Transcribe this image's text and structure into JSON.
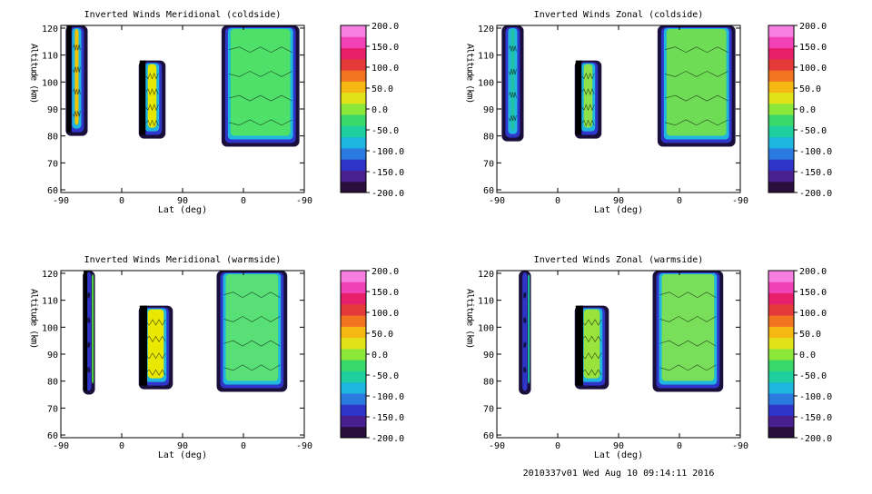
{
  "footer": "2010337v01 Wed Aug 10 09:14:11 2016",
  "chart_data": [
    {
      "type": "heatmap",
      "title": "Inverted Winds Meridional (coldside)",
      "xlabel": "Lat (deg)",
      "ylabel": "Altitude (km)",
      "xticks": [
        "-90",
        "0",
        "90",
        "0",
        "-90"
      ],
      "yticks": [
        60,
        70,
        80,
        90,
        100,
        110,
        120
      ],
      "ylim": [
        59,
        121
      ],
      "blocks": [
        {
          "x0": 0.02,
          "x1": 0.11,
          "y0": 80,
          "y1": 121,
          "fill": "#f2c400",
          "dark": true
        },
        {
          "x0": 0.32,
          "x1": 0.43,
          "y0": 79,
          "y1": 108,
          "fill": "#e6e800",
          "dark": true
        },
        {
          "x0": 0.66,
          "x1": 0.98,
          "y0": 76,
          "y1": 121,
          "fill": "#4fe06a",
          "dark": false
        }
      ],
      "colorbar": {
        "min": -200,
        "max": 200,
        "ticks": [
          "200.0",
          "150.0",
          "100.0",
          "50.0",
          "0.0",
          "-50.0",
          "-100.0",
          "-150.0",
          "-200.0"
        ]
      }
    },
    {
      "type": "heatmap",
      "title": "Inverted Winds Zonal (coldside)",
      "xlabel": "Lat (deg)",
      "ylabel": "Altitude (km)",
      "xticks": [
        "-90",
        "0",
        "90",
        "0",
        "-90"
      ],
      "yticks": [
        60,
        70,
        80,
        90,
        100,
        110,
        120
      ],
      "ylim": [
        59,
        121
      ],
      "blocks": [
        {
          "x0": 0.02,
          "x1": 0.11,
          "y0": 78,
          "y1": 121,
          "fill": "#21c2a4",
          "dark": false
        },
        {
          "x0": 0.32,
          "x1": 0.43,
          "y0": 79,
          "y1": 108,
          "fill": "#8fe14a",
          "dark": true
        },
        {
          "x0": 0.66,
          "x1": 0.98,
          "y0": 76,
          "y1": 121,
          "fill": "#6fdc55",
          "dark": false
        }
      ],
      "colorbar": {
        "min": -200,
        "max": 200,
        "ticks": [
          "200.0",
          "150.0",
          "100.0",
          "50.0",
          "0.0",
          "-50.0",
          "-100.0",
          "-150.0",
          "-200.0"
        ]
      }
    },
    {
      "type": "heatmap",
      "title": "Inverted Winds Meridional (warmside)",
      "xlabel": "Lat (deg)",
      "ylabel": "Altitude (km)",
      "xticks": [
        "-90",
        "0",
        "90",
        "0",
        "-90"
      ],
      "yticks": [
        60,
        70,
        80,
        90,
        100,
        110,
        120
      ],
      "ylim": [
        59,
        121
      ],
      "blocks": [
        {
          "x0": 0.09,
          "x1": 0.14,
          "y0": 75,
          "y1": 121,
          "fill": "#55dd40",
          "dark": true
        },
        {
          "x0": 0.32,
          "x1": 0.46,
          "y0": 77,
          "y1": 108,
          "fill": "#e8e800",
          "dark": true
        },
        {
          "x0": 0.64,
          "x1": 0.93,
          "y0": 76,
          "y1": 121,
          "fill": "#58df76",
          "dark": false
        }
      ],
      "colorbar": {
        "min": -200,
        "max": 200,
        "ticks": [
          "200.0",
          "150.0",
          "100.0",
          "50.0",
          "0.0",
          "-50.0",
          "-100.0",
          "-150.0",
          "-200.0"
        ]
      }
    },
    {
      "type": "heatmap",
      "title": "Inverted Winds Zonal (warmside)",
      "xlabel": "Lat (deg)",
      "ylabel": "Altitude (km)",
      "xticks": [
        "-90",
        "0",
        "90",
        "0",
        "-90"
      ],
      "yticks": [
        60,
        70,
        80,
        90,
        100,
        110,
        120
      ],
      "ylim": [
        59,
        121
      ],
      "blocks": [
        {
          "x0": 0.09,
          "x1": 0.14,
          "y0": 75,
          "y1": 121,
          "fill": "#1ec4a6",
          "dark": false
        },
        {
          "x0": 0.32,
          "x1": 0.46,
          "y0": 77,
          "y1": 108,
          "fill": "#9ae23c",
          "dark": true
        },
        {
          "x0": 0.64,
          "x1": 0.93,
          "y0": 76,
          "y1": 121,
          "fill": "#79df5a",
          "dark": false
        }
      ],
      "colorbar": {
        "min": -200,
        "max": 200,
        "ticks": [
          "200.0",
          "150.0",
          "100.0",
          "50.0",
          "0.0",
          "-50.0",
          "-100.0",
          "-150.0",
          "-200.0"
        ]
      }
    }
  ],
  "colormap": [
    "#2a0f3c",
    "#4a1f8f",
    "#2f35c8",
    "#2a7ae0",
    "#1fb6e0",
    "#1ecfa0",
    "#38d96a",
    "#8be83a",
    "#e2e21a",
    "#f5b714",
    "#f27420",
    "#e53a3a",
    "#e81f6a",
    "#f041b8",
    "#f77fe2"
  ]
}
